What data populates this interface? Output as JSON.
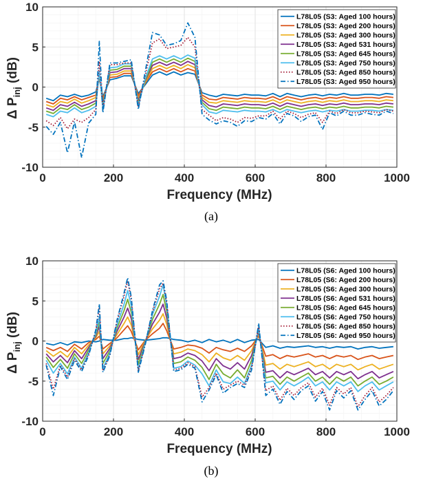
{
  "styles": [
    "solid",
    "solid",
    "solid",
    "solid",
    "solid",
    "solid",
    "dotted",
    "dashdot"
  ],
  "chart_data": [
    {
      "type": "line",
      "caption": "(a)",
      "xlabel": "Frequency (MHz)",
      "ylabel": "Δ P_inj (dB)",
      "ylabel_main": "Δ P",
      "ylabel_sub": "inj",
      "ylabel_unit": " (dB)",
      "xlim": [
        0,
        1000
      ],
      "ylim": [
        -10,
        10
      ],
      "xticks": [
        "0",
        "200",
        "400",
        "600",
        "800",
        "1000"
      ],
      "yticks": [
        "-10",
        "-5",
        "0",
        "5",
        "10"
      ],
      "grid": true,
      "legend_position": "top-right",
      "x": [
        10,
        30,
        50,
        70,
        90,
        110,
        130,
        150,
        160,
        170,
        190,
        210,
        230,
        250,
        270,
        290,
        310,
        330,
        350,
        370,
        390,
        410,
        430,
        450,
        470,
        490,
        510,
        530,
        550,
        570,
        590,
        610,
        630,
        650,
        670,
        690,
        710,
        730,
        750,
        770,
        790,
        810,
        830,
        850,
        870,
        890,
        910,
        930,
        950,
        970,
        990
      ],
      "series": [
        {
          "name": "L78L05 (S3: Aged 100 hours)",
          "color": "#0072BD",
          "values": [
            -1.4,
            -1.7,
            -1.0,
            -1.2,
            -0.9,
            -1.2,
            -1.0,
            -0.6,
            1.0,
            -1.2,
            0.9,
            1.1,
            1.4,
            1.4,
            -0.8,
            0.3,
            1.5,
            1.9,
            1.5,
            1.9,
            1.5,
            1.8,
            1.6,
            -0.7,
            -1.0,
            -1.2,
            -0.9,
            -1.0,
            -1.1,
            -0.9,
            -1.0,
            -1.0,
            -1.1,
            -0.8,
            -1.2,
            -0.8,
            -1.0,
            -1.2,
            -1.0,
            -0.9,
            -1.1,
            -0.9,
            -1.0,
            -0.8,
            -1.0,
            -1.0,
            -0.9,
            -0.9,
            -1.0,
            -0.8,
            -0.9
          ]
        },
        {
          "name": "L78L05 (S3: Aged 200 hours)",
          "color": "#D95319",
          "values": [
            -1.8,
            -2.1,
            -1.4,
            -1.6,
            -1.2,
            -1.6,
            -1.3,
            -1.0,
            1.2,
            -1.5,
            1.2,
            1.3,
            1.7,
            1.7,
            -1.1,
            0.5,
            1.9,
            2.3,
            1.9,
            2.3,
            1.9,
            2.3,
            2.0,
            -1.0,
            -1.5,
            -1.6,
            -1.3,
            -1.4,
            -1.5,
            -1.3,
            -1.4,
            -1.4,
            -1.5,
            -1.2,
            -1.6,
            -1.2,
            -1.4,
            -1.6,
            -1.4,
            -1.3,
            -1.5,
            -1.3,
            -1.4,
            -1.2,
            -1.4,
            -1.4,
            -1.3,
            -1.3,
            -1.4,
            -1.2,
            -1.3
          ]
        },
        {
          "name": "L78L05 (S3: Aged 300 hours)",
          "color": "#EDB120",
          "values": [
            -2.2,
            -2.5,
            -1.8,
            -2.0,
            -1.5,
            -2.0,
            -1.7,
            -1.3,
            1.4,
            -1.8,
            1.5,
            1.6,
            2.0,
            2.0,
            -1.4,
            0.6,
            2.3,
            2.7,
            2.3,
            2.7,
            2.3,
            2.8,
            2.4,
            -1.3,
            -1.9,
            -2.0,
            -1.7,
            -1.8,
            -1.9,
            -1.7,
            -1.8,
            -1.8,
            -1.9,
            -1.6,
            -2.0,
            -1.6,
            -1.8,
            -2.0,
            -1.8,
            -1.7,
            -1.9,
            -1.7,
            -1.8,
            -1.6,
            -1.8,
            -1.8,
            -1.7,
            -1.7,
            -1.8,
            -1.6,
            -1.7
          ]
        },
        {
          "name": "L78L05 (S3: Aged 531 hours)",
          "color": "#7E2F8E",
          "values": [
            -2.6,
            -2.9,
            -2.2,
            -2.4,
            -1.9,
            -2.4,
            -2.1,
            -1.7,
            1.6,
            -2.1,
            1.8,
            1.9,
            2.3,
            2.3,
            -1.7,
            0.8,
            2.7,
            3.1,
            2.7,
            3.1,
            2.7,
            3.2,
            2.8,
            -1.6,
            -2.3,
            -2.5,
            -2.1,
            -2.2,
            -2.3,
            -2.1,
            -2.2,
            -2.2,
            -2.3,
            -2.0,
            -2.4,
            -2.0,
            -2.2,
            -2.4,
            -2.2,
            -2.1,
            -2.3,
            -2.1,
            -2.2,
            -2.0,
            -2.2,
            -2.2,
            -2.1,
            -2.1,
            -2.2,
            -2.0,
            -2.1
          ]
        },
        {
          "name": "L78L05 (S3: Aged 645 hours)",
          "color": "#77AC30",
          "values": [
            -3.0,
            -3.3,
            -2.6,
            -2.8,
            -2.2,
            -2.8,
            -2.5,
            -2.0,
            1.8,
            -2.4,
            2.1,
            2.2,
            2.6,
            2.6,
            -2.0,
            0.9,
            3.1,
            3.5,
            3.1,
            3.5,
            3.1,
            3.6,
            3.2,
            -1.9,
            -2.7,
            -2.9,
            -2.5,
            -2.6,
            -2.7,
            -2.5,
            -2.6,
            -2.6,
            -2.7,
            -2.4,
            -2.8,
            -2.4,
            -2.6,
            -2.8,
            -2.6,
            -2.5,
            -2.7,
            -2.5,
            -2.6,
            -2.4,
            -2.6,
            -2.6,
            -2.5,
            -2.5,
            -2.6,
            -2.4,
            -2.5
          ]
        },
        {
          "name": "L78L05 (S3: Aged 750 hours)",
          "color": "#4DBEEE",
          "values": [
            -3.4,
            -3.7,
            -3.0,
            -3.2,
            -2.6,
            -3.2,
            -2.9,
            -2.4,
            2.0,
            -2.7,
            2.4,
            2.5,
            2.9,
            2.9,
            -2.3,
            1.1,
            3.5,
            3.9,
            3.5,
            3.9,
            3.5,
            4.0,
            3.6,
            -2.2,
            -3.1,
            -3.3,
            -2.9,
            -3.0,
            -3.1,
            -2.9,
            -3.0,
            -3.0,
            -3.1,
            -2.8,
            -3.2,
            -2.8,
            -3.0,
            -3.2,
            -3.0,
            -2.9,
            -3.1,
            -2.9,
            -3.0,
            -2.8,
            -3.0,
            -3.0,
            -2.9,
            -2.9,
            -3.0,
            -2.8,
            -2.9
          ]
        },
        {
          "name": "L78L05 (S3: Aged 850 hours)",
          "color": "#A2142F",
          "values": [
            -4.2,
            -4.8,
            -3.8,
            -5.2,
            -4.0,
            -4.4,
            -3.8,
            -2.8,
            3.2,
            -2.8,
            2.8,
            2.8,
            3.0,
            3.0,
            -2.5,
            1.5,
            5.5,
            6.0,
            4.8,
            5.0,
            5.2,
            6.2,
            5.0,
            -2.8,
            -3.5,
            -4.2,
            -3.8,
            -4.0,
            -4.4,
            -3.8,
            -3.9,
            -3.6,
            -3.6,
            -3.0,
            -4.0,
            -3.0,
            -3.3,
            -3.8,
            -3.4,
            -3.2,
            -4.4,
            -3.0,
            -3.3,
            -2.8,
            -3.2,
            -3.2,
            -3.0,
            -3.1,
            -3.2,
            -2.8,
            -3.0
          ]
        },
        {
          "name": "L78L05 (S3: Aged 950 hours)",
          "color": "#0072BD",
          "values": [
            -4.9,
            -5.9,
            -4.4,
            -8.2,
            -4.3,
            -8.8,
            -4.5,
            -3.4,
            5.7,
            -3.2,
            3.0,
            3.0,
            3.2,
            3.4,
            -2.8,
            2.0,
            6.8,
            6.5,
            5.2,
            5.4,
            5.8,
            8.0,
            6.2,
            -3.4,
            -4.1,
            -4.6,
            -4.2,
            -4.4,
            -4.9,
            -4.2,
            -4.3,
            -3.8,
            -4.0,
            -3.3,
            -4.6,
            -3.3,
            -3.6,
            -4.3,
            -3.7,
            -3.5,
            -5.3,
            -3.2,
            -3.6,
            -3.0,
            -3.5,
            -3.5,
            -3.2,
            -3.4,
            -3.5,
            -3.0,
            -3.3
          ]
        }
      ]
    },
    {
      "type": "line",
      "caption": "(b)",
      "xlabel": "Frequency (MHz)",
      "ylabel": "Δ P_inj (dB)",
      "ylabel_main": "Δ P",
      "ylabel_sub": "inj",
      "ylabel_unit": " (dB)",
      "xlim": [
        0,
        1000
      ],
      "ylim": [
        -10,
        10
      ],
      "xticks": [
        "0",
        "200",
        "400",
        "600",
        "800",
        "1000"
      ],
      "yticks": [
        "-10",
        "-5",
        "0",
        "5",
        "10"
      ],
      "grid": true,
      "legend_position": "top-right",
      "x": [
        10,
        30,
        50,
        70,
        90,
        110,
        130,
        150,
        160,
        170,
        190,
        210,
        230,
        240,
        250,
        270,
        290,
        310,
        330,
        340,
        350,
        370,
        390,
        410,
        430,
        450,
        470,
        490,
        510,
        530,
        550,
        570,
        590,
        610,
        630,
        650,
        670,
        690,
        710,
        730,
        750,
        770,
        790,
        810,
        830,
        850,
        870,
        890,
        910,
        930,
        950,
        970,
        990
      ],
      "series": [
        {
          "name": "L78L05 (S6: Aged 100 hours)",
          "color": "#0072BD",
          "values": [
            -0.3,
            -0.5,
            -0.2,
            -0.5,
            -0.1,
            -0.2,
            0.0,
            -0.1,
            0.0,
            0.2,
            0.1,
            0.1,
            0.3,
            0.3,
            0.4,
            0.2,
            0.1,
            0.2,
            0.3,
            0.4,
            0.4,
            0.2,
            0.1,
            -0.1,
            0.1,
            -0.2,
            0.2,
            -0.1,
            0.1,
            -0.2,
            0.2,
            -0.2,
            0.1,
            0.2,
            -0.8,
            -0.6,
            -0.9,
            -0.7,
            -0.8,
            -0.7,
            -0.6,
            -0.8,
            -0.7,
            -0.9,
            -0.7,
            -0.8,
            -0.7,
            -1.0,
            -0.8,
            -0.7,
            -0.9,
            -0.8,
            -0.7
          ]
        },
        {
          "name": "L78L05 (S6: Aged 200 hours)",
          "color": "#D95319",
          "values": [
            -0.8,
            -1.2,
            -0.8,
            -1.3,
            -0.4,
            -1.0,
            -0.2,
            0.2,
            0.6,
            -1.0,
            -0.3,
            0.4,
            1.4,
            1.9,
            1.2,
            -1.1,
            0.1,
            0.9,
            1.6,
            2.2,
            1.3,
            -1.0,
            -0.8,
            -0.5,
            -0.6,
            -0.9,
            -1.5,
            -0.8,
            -1.1,
            -1.3,
            -0.9,
            -1.3,
            -0.6,
            0.6,
            -1.9,
            -1.7,
            -2.2,
            -1.8,
            -2.0,
            -1.8,
            -1.6,
            -2.0,
            -1.8,
            -2.2,
            -1.8,
            -2.0,
            -1.8,
            -2.3,
            -2.0,
            -1.8,
            -2.2,
            -2.0,
            -1.8
          ]
        },
        {
          "name": "L78L05 (S6: Aged 300 hours)",
          "color": "#EDB120",
          "values": [
            -1.2,
            -1.9,
            -1.3,
            -2.0,
            -0.8,
            -1.6,
            -0.5,
            0.4,
            1.2,
            -1.6,
            -0.6,
            0.8,
            2.2,
            3.0,
            2.0,
            -1.7,
            0.1,
            1.5,
            2.6,
            3.4,
            2.1,
            -1.6,
            -1.4,
            -1.0,
            -1.2,
            -1.7,
            -2.6,
            -1.5,
            -2.1,
            -2.4,
            -1.8,
            -2.4,
            -1.2,
            0.9,
            -3.0,
            -2.8,
            -3.5,
            -2.9,
            -3.2,
            -2.9,
            -2.6,
            -3.2,
            -2.9,
            -3.5,
            -2.9,
            -3.2,
            -2.9,
            -3.6,
            -3.2,
            -2.9,
            -3.5,
            -3.2,
            -2.9
          ]
        },
        {
          "name": "L78L05 (S6: Aged 531 hours)",
          "color": "#7E2F8E",
          "values": [
            -1.6,
            -2.6,
            -1.8,
            -2.7,
            -1.2,
            -2.2,
            -0.8,
            0.6,
            1.8,
            -2.2,
            -0.9,
            1.2,
            3.0,
            4.1,
            2.8,
            -2.3,
            0.0,
            2.1,
            3.6,
            4.6,
            2.9,
            -2.2,
            -2.0,
            -1.5,
            -1.8,
            -2.5,
            -3.7,
            -2.2,
            -3.1,
            -3.5,
            -2.7,
            -3.5,
            -1.8,
            1.2,
            -3.9,
            -3.7,
            -4.6,
            -3.8,
            -4.2,
            -3.8,
            -3.4,
            -4.2,
            -3.8,
            -4.6,
            -3.8,
            -4.2,
            -3.8,
            -4.7,
            -4.2,
            -3.8,
            -4.6,
            -4.2,
            -3.8
          ]
        },
        {
          "name": "L78L05 (S6: Aged 645 hours)",
          "color": "#77AC30",
          "values": [
            -2.0,
            -3.3,
            -2.3,
            -3.4,
            -1.6,
            -2.8,
            -1.1,
            0.8,
            2.4,
            -2.8,
            -1.2,
            1.6,
            3.8,
            5.2,
            3.6,
            -2.9,
            -0.1,
            2.7,
            4.6,
            5.8,
            3.7,
            -2.8,
            -2.6,
            -2.0,
            -2.4,
            -3.3,
            -4.8,
            -2.9,
            -4.1,
            -4.6,
            -3.6,
            -4.6,
            -2.4,
            1.5,
            -4.6,
            -4.4,
            -5.4,
            -4.5,
            -5.0,
            -4.5,
            -4.0,
            -5.0,
            -4.5,
            -5.4,
            -4.5,
            -5.0,
            -4.5,
            -5.6,
            -5.0,
            -4.5,
            -5.4,
            -5.0,
            -4.5
          ]
        },
        {
          "name": "L78L05 (S6: Aged 750 hours)",
          "color": "#4DBEEE",
          "values": [
            -2.4,
            -4.0,
            -2.8,
            -4.1,
            -2.0,
            -3.4,
            -1.4,
            1.0,
            3.0,
            -3.4,
            -1.5,
            2.0,
            4.6,
            6.3,
            4.4,
            -3.5,
            -0.2,
            3.3,
            5.6,
            7.0,
            4.5,
            -3.4,
            -3.2,
            -2.5,
            -3.0,
            -4.1,
            -5.6,
            -3.6,
            -5.1,
            -5.3,
            -4.5,
            -5.3,
            -3.0,
            1.7,
            -5.2,
            -5.0,
            -6.1,
            -5.1,
            -5.6,
            -5.1,
            -4.5,
            -5.6,
            -5.1,
            -6.1,
            -5.1,
            -5.6,
            -5.1,
            -6.3,
            -5.6,
            -5.1,
            -6.1,
            -5.6,
            -5.1
          ]
        },
        {
          "name": "L78L05 (S6: Aged 850 hours)",
          "color": "#A2142F",
          "values": [
            -2.8,
            -6.0,
            -3.0,
            -4.5,
            -2.2,
            -3.6,
            -1.6,
            1.2,
            4.2,
            -3.7,
            -1.7,
            2.4,
            5.6,
            7.5,
            5.2,
            -3.7,
            -0.3,
            3.6,
            6.5,
            7.2,
            4.8,
            -3.6,
            -3.4,
            -2.7,
            -3.2,
            -7.0,
            -5.8,
            -4.0,
            -6.0,
            -5.5,
            -5.0,
            -5.5,
            -3.3,
            1.9,
            -6.2,
            -5.6,
            -7.4,
            -5.9,
            -6.8,
            -5.8,
            -5.2,
            -7.0,
            -5.9,
            -8.0,
            -5.8,
            -6.6,
            -5.8,
            -8.2,
            -6.8,
            -5.8,
            -7.6,
            -6.8,
            -5.8
          ]
        },
        {
          "name": "L78L05 (S6: Aged 950 hours)",
          "color": "#0072BD",
          "values": [
            -3.0,
            -6.8,
            -3.2,
            -4.8,
            -2.4,
            -3.8,
            -1.8,
            1.4,
            4.6,
            -3.9,
            -1.8,
            2.6,
            6.0,
            7.9,
            5.5,
            -3.9,
            -0.4,
            3.8,
            7.0,
            7.5,
            5.1,
            -3.8,
            -3.6,
            -2.9,
            -3.4,
            -7.6,
            -6.1,
            -4.2,
            -6.5,
            -5.8,
            -5.3,
            -5.8,
            -3.6,
            2.2,
            -6.8,
            -6.0,
            -7.9,
            -6.3,
            -7.3,
            -6.2,
            -5.6,
            -7.5,
            -6.3,
            -8.6,
            -6.2,
            -7.1,
            -6.2,
            -8.6,
            -7.3,
            -6.2,
            -8.1,
            -7.3,
            -6.2
          ]
        }
      ]
    }
  ]
}
